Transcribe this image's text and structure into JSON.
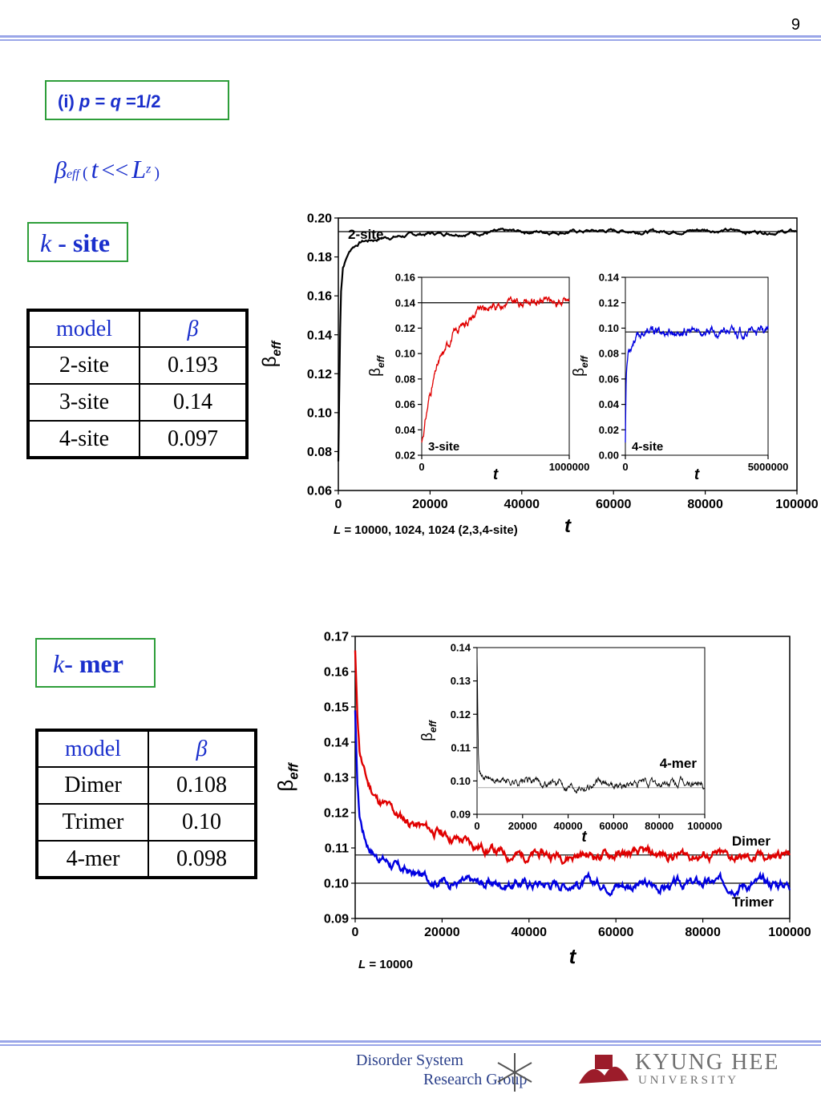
{
  "page_number": "9",
  "condition": {
    "label": "(i)",
    "p": "p",
    "eq1": "=",
    "q": "q",
    "eq2": "=1/2"
  },
  "formula": {
    "beta": "β",
    "eff": "eff",
    "open": "(",
    "t": "t",
    "ll": "<<",
    "L": "L",
    "z": "z",
    "close": ")"
  },
  "ksite": {
    "k": "k",
    "label": "- site",
    "table": {
      "headers": [
        "model",
        "β"
      ],
      "rows": [
        [
          "2-site",
          "0.193"
        ],
        [
          "3-site",
          "0.14"
        ],
        [
          "4-site",
          "0.097"
        ]
      ]
    }
  },
  "kmer": {
    "k": "k",
    "label": "- mer",
    "table": {
      "headers": [
        "model",
        "β"
      ],
      "rows": [
        [
          "Dimer",
          "0.108"
        ],
        [
          "Trimer",
          "0.10"
        ],
        [
          "4-mer",
          "0.098"
        ]
      ]
    }
  },
  "footer": {
    "dsrg_line1": "Disorder System",
    "dsrg_line2": "Research Group",
    "university": "KYUNG HEE",
    "university_sub": "U N I V E R S I T Y"
  },
  "colors": {
    "blue_text": "#1a2fcc",
    "green_box": "#2e9e3a",
    "rule": "#9aa6e8",
    "red": "#e00000",
    "blue": "#0000e0",
    "black": "#000000"
  },
  "chart_data": [
    {
      "type": "line",
      "xlabel": "t",
      "ylabel": "β",
      "ylabel_sub": "eff",
      "xlim": [
        0,
        100000
      ],
      "ylim": [
        0.06,
        0.2
      ],
      "xticks": [
        "0",
        "20000",
        "40000",
        "60000",
        "80000",
        "100000"
      ],
      "yticks": [
        "0.06",
        "0.08",
        "0.10",
        "0.12",
        "0.14",
        "0.16",
        "0.18",
        "0.20"
      ],
      "note": {
        "L": "L",
        "text": " = 10000, 1024, 1024 (2,3,4-site)"
      },
      "series": [
        {
          "name": "2-site",
          "color": "#000000",
          "x": [
            0,
            500,
            1000,
            2000,
            3000,
            5000,
            8000,
            10000,
            15000,
            20000,
            30000,
            40000,
            50000,
            60000,
            70000,
            80000,
            90000,
            100000
          ],
          "y": [
            0.075,
            0.16,
            0.175,
            0.181,
            0.185,
            0.188,
            0.189,
            0.19,
            0.191,
            0.192,
            0.1925,
            0.193,
            0.193,
            0.1935,
            0.193,
            0.194,
            0.193,
            0.193
          ]
        }
      ],
      "reference_lines": [
        0.193
      ],
      "insets": [
        {
          "label": "3-site",
          "xlabel": "t",
          "ylabel": "β",
          "ylabel_sub": "eff",
          "xlim": [
            0,
            1000000
          ],
          "ylim": [
            0.02,
            0.16
          ],
          "xticks": [
            "0",
            "1000000"
          ],
          "yticks": [
            "0.02",
            "0.04",
            "0.06",
            "0.08",
            "0.10",
            "0.12",
            "0.14",
            "0.16"
          ],
          "series": [
            {
              "color": "#e00000",
              "x": [
                0,
                50000,
                100000,
                200000,
                300000,
                400000,
                500000,
                600000,
                700000,
                800000,
                900000,
                1000000
              ],
              "y": [
                0.03,
                0.065,
                0.088,
                0.113,
                0.126,
                0.134,
                0.139,
                0.14,
                0.141,
                0.141,
                0.141,
                0.141
              ]
            }
          ],
          "reference_lines": [
            0.14
          ]
        },
        {
          "label": "4-site",
          "xlabel": "t",
          "ylabel": "β",
          "ylabel_sub": "eff",
          "xlim": [
            0,
            5000000
          ],
          "ylim": [
            0.0,
            0.14
          ],
          "xticks": [
            "0",
            "5000000"
          ],
          "yticks": [
            "0.00",
            "0.02",
            "0.04",
            "0.06",
            "0.08",
            "0.10",
            "0.12",
            "0.14"
          ],
          "series": [
            {
              "color": "#0000e0",
              "x": [
                0,
                30000,
                100000,
                300000,
                600000,
                1000000,
                2000000,
                3000000,
                4000000,
                5000000
              ],
              "y": [
                0.01,
                0.065,
                0.082,
                0.092,
                0.096,
                0.097,
                0.097,
                0.097,
                0.097,
                0.097
              ]
            }
          ],
          "reference_lines": [
            0.097
          ]
        }
      ]
    },
    {
      "type": "line",
      "xlabel": "t",
      "ylabel": "β",
      "ylabel_sub": "eff",
      "xlim": [
        0,
        100000
      ],
      "ylim": [
        0.09,
        0.17
      ],
      "xticks": [
        "0",
        "20000",
        "40000",
        "60000",
        "80000",
        "100000"
      ],
      "yticks": [
        "0.09",
        "0.10",
        "0.11",
        "0.12",
        "0.13",
        "0.14",
        "0.15",
        "0.16",
        "0.17"
      ],
      "note": {
        "L": "L",
        "text": " = 10000"
      },
      "series": [
        {
          "name": "Dimer",
          "color": "#e00000",
          "x": [
            0,
            500,
            1000,
            2000,
            3000,
            5000,
            8000,
            10000,
            15000,
            20000,
            25000,
            30000,
            35000,
            40000,
            50000,
            60000,
            70000,
            80000,
            90000,
            100000
          ],
          "y": [
            0.166,
            0.148,
            0.138,
            0.132,
            0.128,
            0.124,
            0.121,
            0.119,
            0.116,
            0.114,
            0.112,
            0.11,
            0.108,
            0.108,
            0.108,
            0.108,
            0.108,
            0.108,
            0.107,
            0.108
          ]
        },
        {
          "name": "Trimer",
          "color": "#0000e0",
          "x": [
            0,
            500,
            1000,
            2000,
            3000,
            5000,
            8000,
            10000,
            15000,
            20000,
            25000,
            30000,
            40000,
            50000,
            60000,
            70000,
            80000,
            90000,
            100000
          ],
          "y": [
            0.149,
            0.128,
            0.119,
            0.114,
            0.111,
            0.108,
            0.106,
            0.104,
            0.102,
            0.101,
            0.1,
            0.1,
            0.1,
            0.1,
            0.1,
            0.099,
            0.1,
            0.1,
            0.1
          ]
        }
      ],
      "reference_lines": [
        0.108,
        0.1
      ],
      "insets": [
        {
          "label": "4-mer",
          "xlabel": "t",
          "ylabel": "β",
          "ylabel_sub": "eff",
          "xlim": [
            0,
            100000
          ],
          "ylim": [
            0.09,
            0.14
          ],
          "xticks": [
            "0",
            "20000",
            "40000",
            "60000",
            "80000",
            "100000"
          ],
          "yticks": [
            "0.09",
            "0.10",
            "0.11",
            "0.12",
            "0.13",
            "0.14"
          ],
          "series": [
            {
              "color": "#000000",
              "x": [
                0,
                500,
                1000,
                2000,
                4000,
                8000,
                20000,
                40000,
                60000,
                80000,
                100000
              ],
              "y": [
                0.138,
                0.112,
                0.105,
                0.102,
                0.101,
                0.1,
                0.1,
                0.099,
                0.099,
                0.099,
                0.099
              ]
            }
          ],
          "reference_lines": [
            0.098
          ]
        }
      ]
    }
  ]
}
